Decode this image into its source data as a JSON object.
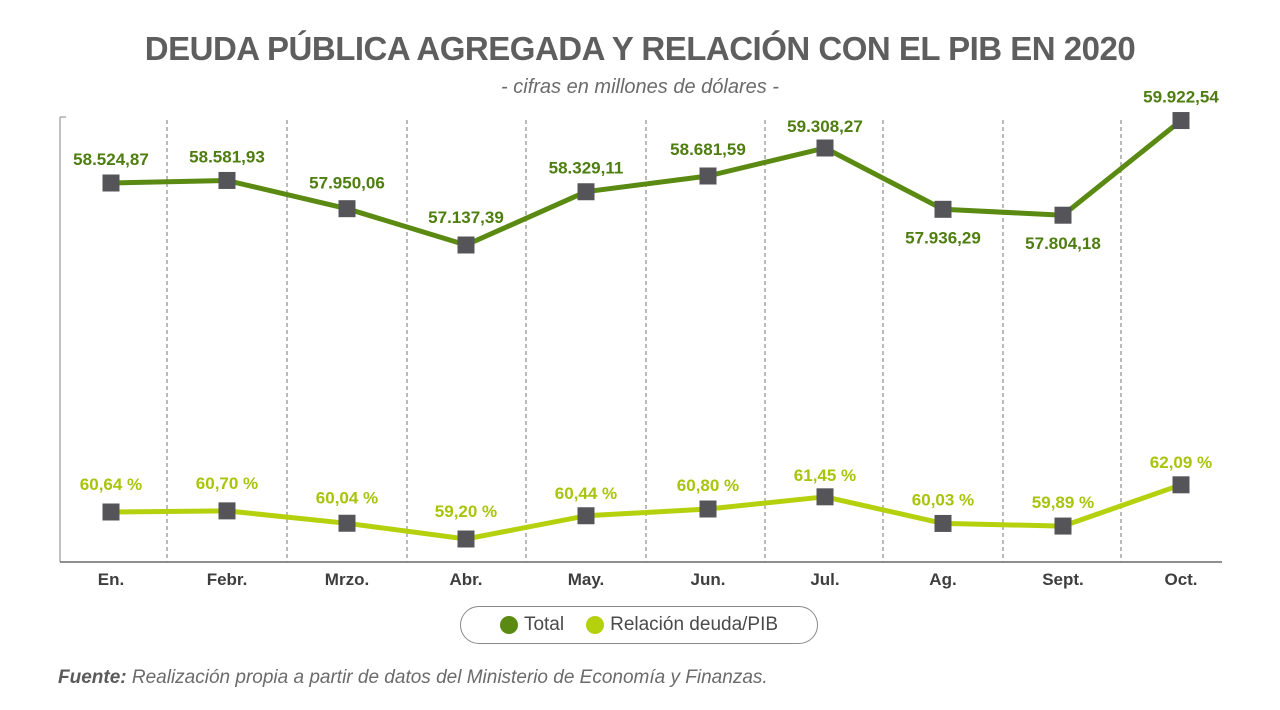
{
  "header": {
    "title": "DEUDA PÚBLICA AGREGADA Y RELACIÓN CON EL PIB EN 2020",
    "subtitle": "- cifras en millones de dólares -"
  },
  "legend": {
    "items": [
      {
        "label": "Total",
        "color": "#5a8a12"
      },
      {
        "label": "Relación deuda/PIB",
        "color": "#b5d10e"
      }
    ]
  },
  "footer": {
    "source_label": "Fuente:",
    "source_text": " Realización propia a partir de datos del Ministerio de Economía y Finanzas."
  },
  "chart_data": {
    "type": "line",
    "categories": [
      "En.",
      "Febr.",
      "Mrzo.",
      "Abr.",
      "May.",
      "Jun.",
      "Jul.",
      "Ag.",
      "Sept.",
      "Oct."
    ],
    "series": [
      {
        "name": "Total",
        "color": "#5a8a12",
        "values": [
          58524.87,
          58581.93,
          57950.06,
          57137.39,
          58329.11,
          58681.59,
          59308.27,
          57936.29,
          57804.18,
          59922.54
        ],
        "labels": [
          "58.524,87",
          "58.581,93",
          "57.950,06",
          "57.137,39",
          "58.329,11",
          "58.681,59",
          "59.308,27",
          "57.936,29",
          "57.804,18",
          "59.922,54"
        ]
      },
      {
        "name": "Relación deuda/PIB",
        "color": "#b5d10e",
        "values": [
          60.64,
          60.7,
          60.04,
          59.2,
          60.44,
          60.8,
          61.45,
          60.03,
          59.89,
          62.09
        ],
        "labels": [
          "60,64 %",
          "60,70 %",
          "60,04 %",
          "59,20 %",
          "60,44 %",
          "60,80 %",
          "61,45 %",
          "60,03 %",
          "59,89 %",
          "62,09 %"
        ]
      }
    ],
    "grid": "vertical dashed separators",
    "legend_position": "bottom-center",
    "marker_color": "#555559"
  }
}
